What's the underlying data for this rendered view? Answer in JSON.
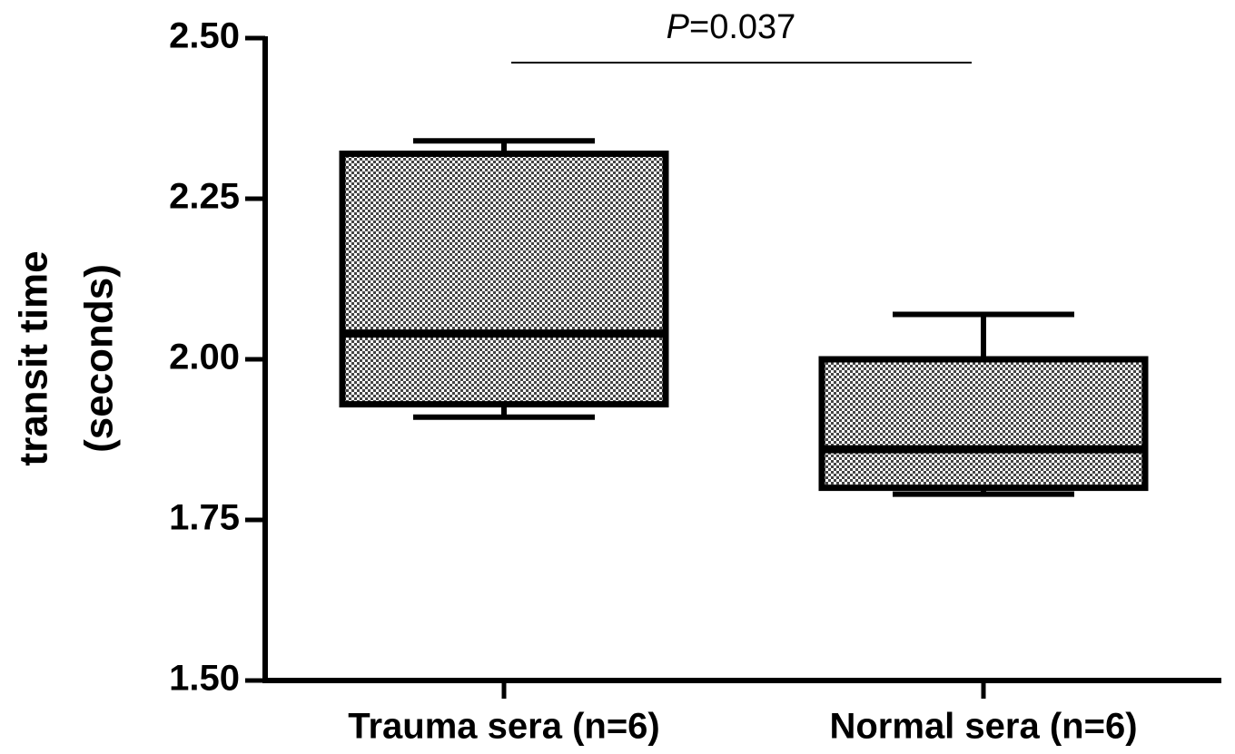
{
  "chart_data": {
    "type": "box",
    "ylabel": [
      "transit time",
      "(seconds)"
    ],
    "categories": [
      "Trauma sera (n=6)",
      "Normal sera (n=6)"
    ],
    "boxes": [
      {
        "min": 1.91,
        "q1": 1.93,
        "median": 2.04,
        "q3": 2.32,
        "max": 2.34
      },
      {
        "min": 1.79,
        "q1": 1.8,
        "median": 1.86,
        "q3": 2.0,
        "max": 2.07
      }
    ],
    "ylim": [
      1.5,
      2.5
    ],
    "yticks": [
      {
        "value": 1.5,
        "label": "1.50"
      },
      {
        "value": 1.75,
        "label": "1.75"
      },
      {
        "value": 2.0,
        "label": "2.00"
      },
      {
        "value": 2.25,
        "label": "2.25"
      },
      {
        "value": 2.5,
        "label": "2.50"
      }
    ],
    "annotation": {
      "symbol": "P",
      "text": "=0.037"
    },
    "color": "#000000"
  }
}
